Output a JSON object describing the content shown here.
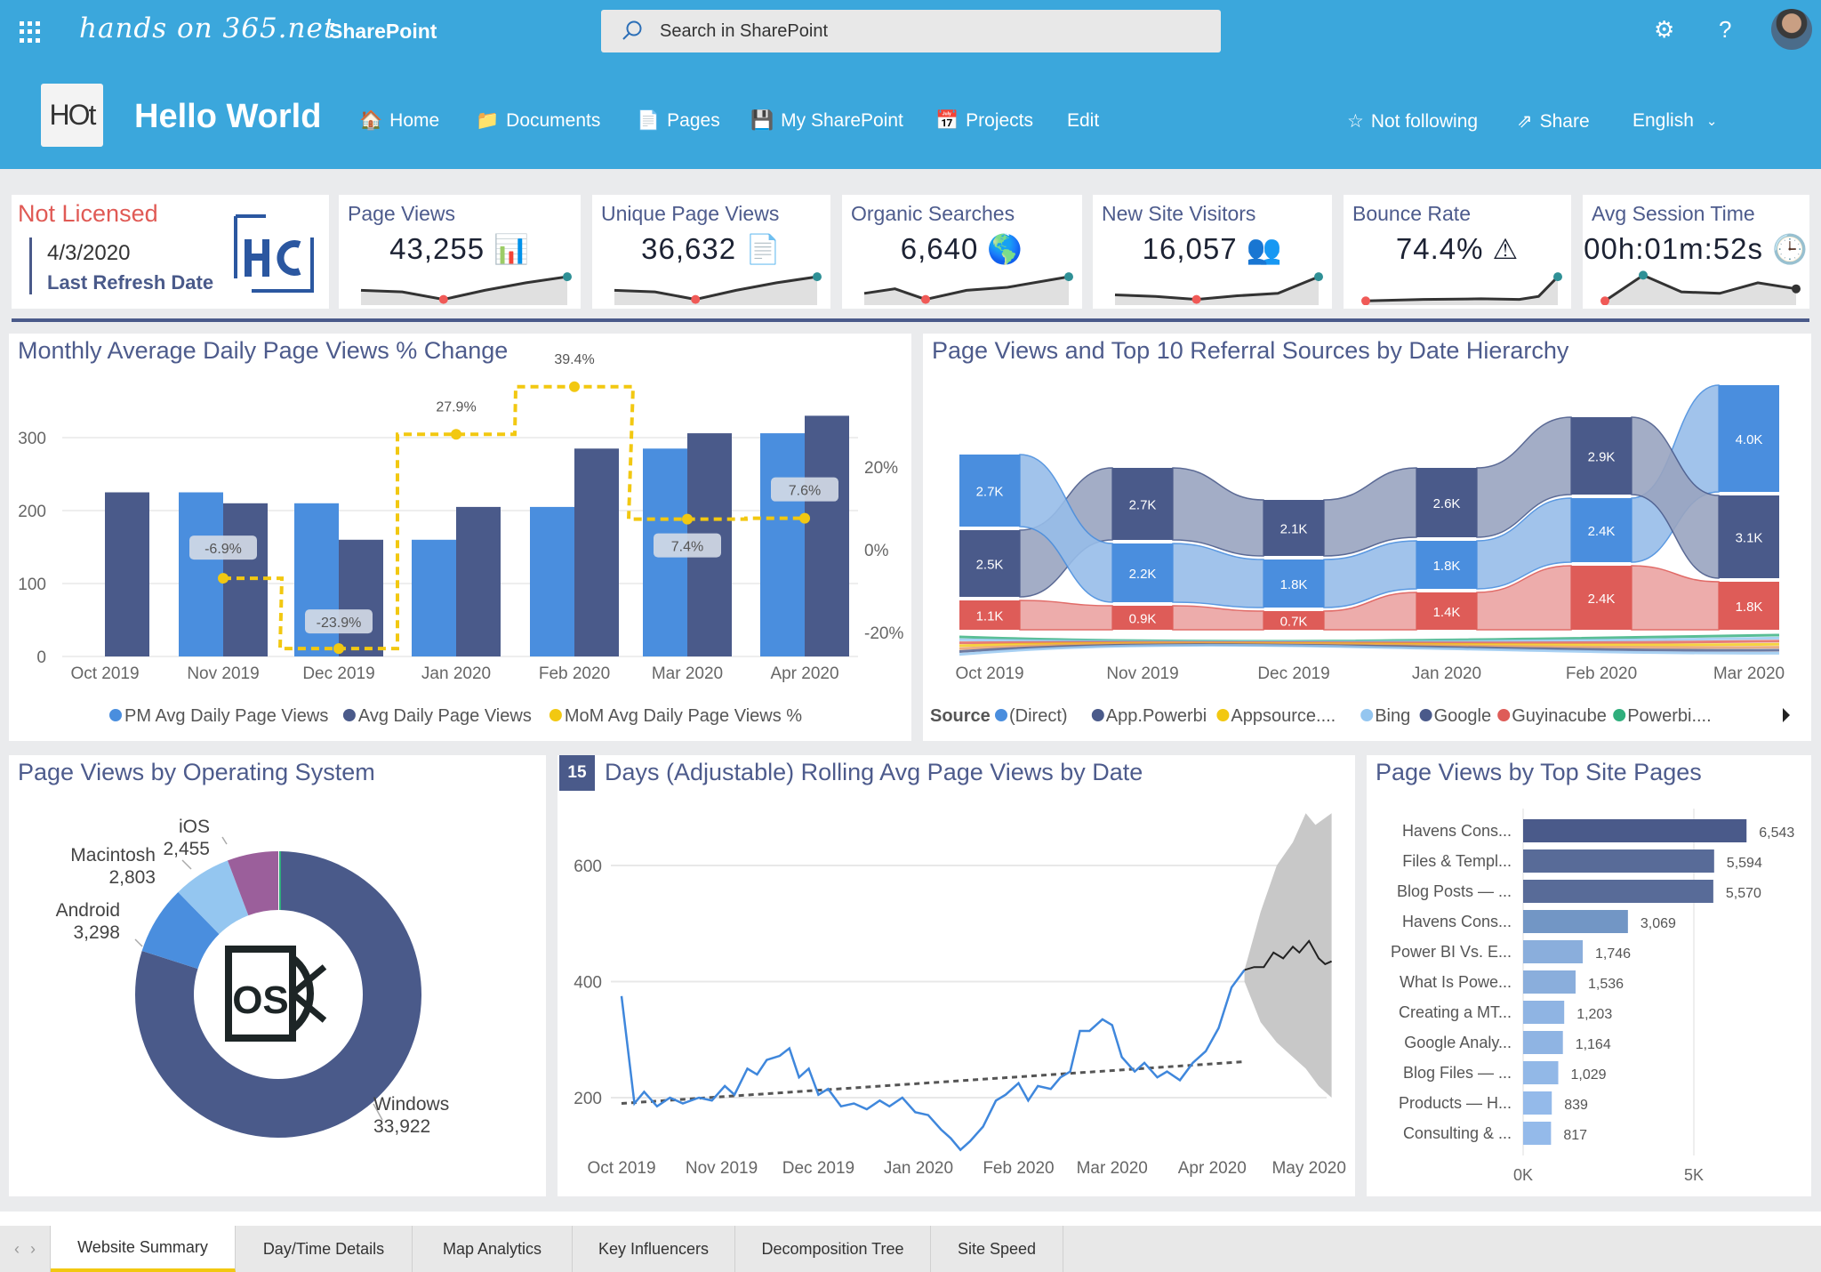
{
  "header": {
    "brand_logo": "hands on 365.net",
    "app_name": "SharePoint",
    "search_placeholder": "Search in SharePoint",
    "site_logo": "HOt",
    "site_title": "Hello World",
    "nav": [
      {
        "label": "Home",
        "icon": "house-icon"
      },
      {
        "label": "Documents",
        "icon": "folder-icon"
      },
      {
        "label": "Pages",
        "icon": "page-icon"
      },
      {
        "label": "My SharePoint",
        "icon": "floppy-icon"
      },
      {
        "label": "Projects",
        "icon": "calendar-icon"
      },
      {
        "label": "Edit"
      }
    ],
    "follow_label": "Not following",
    "share_label": "Share",
    "language": "English"
  },
  "license": {
    "status": "Not Licensed",
    "date": "4/3/2020",
    "date_label": "Last Refresh Date",
    "logo": "HC"
  },
  "kpis": [
    {
      "title": "Page Views",
      "value": "43,255",
      "icon": "bar-chart-icon"
    },
    {
      "title": "Unique Page Views",
      "value": "36,632",
      "icon": "document-icon"
    },
    {
      "title": "Organic Searches",
      "value": "6,640",
      "icon": "globe-icon"
    },
    {
      "title": "New Site Visitors",
      "value": "16,057",
      "icon": "users-icon"
    },
    {
      "title": "Bounce Rate",
      "value": "74.4%",
      "icon": "warning-icon"
    },
    {
      "title": "Avg Session Time",
      "value": "00h:01m:52s",
      "icon": "clock-icon"
    }
  ],
  "colors": {
    "header": "#3ba7dc",
    "pm": "#4a8ede",
    "avg": "#4a5a8a",
    "mom": "#f2c811",
    "guy": "#de5c58",
    "bing": "#94c6f0",
    "green": "#2fae7c",
    "title": "#4d5b8c"
  },
  "chart_data": [
    {
      "type": "bar",
      "title": "Monthly Average Daily Page Views % Change",
      "categories": [
        "Oct 2019",
        "Nov 2019",
        "Dec 2019",
        "Jan 2020",
        "Feb 2020",
        "Mar 2020",
        "Apr 2020"
      ],
      "ylim": [
        0,
        330
      ],
      "yticks": [
        0,
        100,
        200,
        300
      ],
      "y2ticks": [
        "20%",
        "0%",
        "-20%"
      ],
      "y2values": [
        20,
        0,
        -20
      ],
      "grid": true,
      "legend": "bottom",
      "series": [
        {
          "name": "PM Avg Daily Page Views",
          "values": [
            null,
            225,
            210,
            160,
            205,
            285,
            306
          ]
        },
        {
          "name": "Avg Daily Page Views",
          "values": [
            225,
            210,
            160,
            205,
            285,
            306,
            330
          ]
        },
        {
          "name": "MoM Avg Daily Page Views %",
          "type": "step-line",
          "axis": "right",
          "values": [
            null,
            -6.9,
            -23.9,
            27.9,
            39.4,
            7.4,
            7.6
          ],
          "labels": [
            "",
            "-6.9%",
            "-23.9%",
            "27.9%",
            "39.4%",
            "7.4%",
            "7.6%"
          ]
        }
      ]
    },
    {
      "type": "sankey",
      "title": "Page Views and Top 10 Referral Sources by Date Hierarchy",
      "categories": [
        "Oct 2019",
        "Nov 2019",
        "Dec 2019",
        "Jan 2020",
        "Feb 2020",
        "Mar 2020"
      ],
      "legend_title": "Source",
      "legend": [
        "(Direct)",
        "App.Powerbi",
        "Appsource....",
        "Bing",
        "Google",
        "Guyinacube",
        "Powerbi...."
      ],
      "legend_colors": [
        "#4a8ede",
        "#4a5a8a",
        "#f2c811",
        "#94c6f0",
        "#4a5a8a",
        "#de5c58",
        "#2fae7c"
      ],
      "nodes": [
        [
          {
            "source": "(Direct)",
            "value": 2.7,
            "label": "2.7K"
          },
          {
            "source": "App.Powerbi",
            "value": 2.5,
            "label": "2.5K"
          },
          {
            "source": "Guyinacube",
            "value": 1.1,
            "label": "1.1K"
          }
        ],
        [
          {
            "source": "App.Powerbi",
            "value": 2.7,
            "label": "2.7K"
          },
          {
            "source": "(Direct)",
            "value": 2.2,
            "label": "2.2K"
          },
          {
            "source": "Guyinacube",
            "value": 0.9,
            "label": "0.9K"
          }
        ],
        [
          {
            "source": "App.Powerbi",
            "value": 2.1,
            "label": "2.1K"
          },
          {
            "source": "(Direct)",
            "value": 1.8,
            "label": "1.8K"
          },
          {
            "source": "Guyinacube",
            "value": 0.7,
            "label": "0.7K"
          }
        ],
        [
          {
            "source": "App.Powerbi",
            "value": 2.6,
            "label": "2.6K"
          },
          {
            "source": "(Direct)",
            "value": 1.8,
            "label": "1.8K"
          },
          {
            "source": "Guyinacube",
            "value": 1.4,
            "label": "1.4K"
          }
        ],
        [
          {
            "source": "App.Powerbi",
            "value": 2.9,
            "label": "2.9K"
          },
          {
            "source": "(Direct)",
            "value": 2.4,
            "label": "2.4K"
          },
          {
            "source": "Guyinacube",
            "value": 2.4,
            "label": "2.4K"
          }
        ],
        [
          {
            "source": "(Direct)",
            "value": 4.0,
            "label": "4.0K"
          },
          {
            "source": "App.Powerbi",
            "value": 3.1,
            "label": "3.1K"
          },
          {
            "source": "Guyinacube",
            "value": 1.8,
            "label": "1.8K"
          }
        ]
      ]
    },
    {
      "type": "pie",
      "title": "Page Views by Operating System",
      "donut": true,
      "slices": [
        {
          "label": "Windows",
          "value": 33922,
          "display": "33,922",
          "color": "#4a5a8a"
        },
        {
          "label": "Android",
          "value": 3298,
          "display": "3,298",
          "color": "#4a8ede"
        },
        {
          "label": "Macintosh",
          "value": 2803,
          "display": "2,803",
          "color": "#94c6f0"
        },
        {
          "label": "iOS",
          "value": 2455,
          "display": "2,455",
          "color": "#9b5f9b"
        }
      ],
      "center_icon": "os-icon"
    },
    {
      "type": "line",
      "title_badge": "15",
      "title": "Days (Adjustable) Rolling Avg Page Views by Date",
      "xticks": [
        "Oct 2019",
        "Nov 2019",
        "Dec 2019",
        "Jan 2020",
        "Feb 2020",
        "Mar 2020",
        "Apr 2020",
        "May 2020"
      ],
      "yticks": [
        200,
        400,
        600
      ],
      "grid": true,
      "series": [
        {
          "name": "rolling",
          "points": [
            [
              "2019-10-01",
              375
            ],
            [
              "2019-10-05",
              190
            ],
            [
              "2019-10-08",
              210
            ],
            [
              "2019-10-12",
              185
            ],
            [
              "2019-10-16",
              200
            ],
            [
              "2019-10-20",
              190
            ],
            [
              "2019-10-25",
              200
            ],
            [
              "2019-10-29",
              195
            ],
            [
              "2019-11-02",
              220
            ],
            [
              "2019-11-05",
              205
            ],
            [
              "2019-11-09",
              250
            ],
            [
              "2019-11-12",
              240
            ],
            [
              "2019-11-15",
              265
            ],
            [
              "2019-11-19",
              272
            ],
            [
              "2019-11-22",
              285
            ],
            [
              "2019-11-25",
              235
            ],
            [
              "2019-11-28",
              250
            ],
            [
              "2019-12-01",
              205
            ],
            [
              "2019-12-04",
              215
            ],
            [
              "2019-12-08",
              185
            ],
            [
              "2019-12-12",
              190
            ],
            [
              "2019-12-16",
              180
            ],
            [
              "2019-12-20",
              195
            ],
            [
              "2019-12-23",
              185
            ],
            [
              "2019-12-27",
              200
            ],
            [
              "2019-12-31",
              175
            ],
            [
              "2020-01-04",
              170
            ],
            [
              "2020-01-08",
              145
            ],
            [
              "2020-01-11",
              130
            ],
            [
              "2020-01-14",
              110
            ],
            [
              "2020-01-17",
              125
            ],
            [
              "2020-01-21",
              150
            ],
            [
              "2020-01-25",
              195
            ],
            [
              "2020-01-28",
              205
            ],
            [
              "2020-02-01",
              225
            ],
            [
              "2020-02-04",
              195
            ],
            [
              "2020-02-07",
              220
            ],
            [
              "2020-02-11",
              215
            ],
            [
              "2020-02-14",
              235
            ],
            [
              "2020-02-17",
              245
            ],
            [
              "2020-02-20",
              315
            ],
            [
              "2020-02-23",
              315
            ],
            [
              "2020-02-27",
              335
            ],
            [
              "2020-03-01",
              325
            ],
            [
              "2020-03-04",
              270
            ],
            [
              "2020-03-08",
              245
            ],
            [
              "2020-03-11",
              260
            ],
            [
              "2020-03-15",
              235
            ],
            [
              "2020-03-18",
              245
            ],
            [
              "2020-03-22",
              230
            ],
            [
              "2020-03-26",
              260
            ],
            [
              "2020-03-30",
              280
            ],
            [
              "2020-04-03",
              320
            ],
            [
              "2020-04-07",
              390
            ],
            [
              "2020-04-11",
              420
            ]
          ]
        },
        {
          "name": "forecast",
          "points": [
            [
              "2020-04-11",
              420
            ],
            [
              "2020-04-14",
              425
            ],
            [
              "2020-04-17",
              425
            ],
            [
              "2020-04-20",
              450
            ],
            [
              "2020-04-23",
              440
            ],
            [
              "2020-04-26",
              460
            ],
            [
              "2020-04-28",
              450
            ],
            [
              "2020-05-01",
              470
            ],
            [
              "2020-05-04",
              440
            ],
            [
              "2020-05-06",
              430
            ],
            [
              "2020-05-08",
              435
            ]
          ]
        },
        {
          "name": "forecast_band",
          "upper": [
            [
              "2020-04-11",
              420
            ],
            [
              "2020-04-16",
              520
            ],
            [
              "2020-04-21",
              600
            ],
            [
              "2020-04-26",
              640
            ],
            [
              "2020-04-30",
              690
            ],
            [
              "2020-05-03",
              670
            ],
            [
              "2020-05-08",
              690
            ]
          ],
          "lower": [
            [
              "2020-04-11",
              400
            ],
            [
              "2020-04-16",
              330
            ],
            [
              "2020-04-21",
              295
            ],
            [
              "2020-04-26",
              270
            ],
            [
              "2020-04-30",
              250
            ],
            [
              "2020-05-04",
              220
            ],
            [
              "2020-05-08",
              200
            ]
          ]
        },
        {
          "name": "trend",
          "points": [
            [
              "2019-10-01",
              190
            ],
            [
              "2020-04-11",
              262
            ]
          ]
        }
      ]
    },
    {
      "type": "bar",
      "orientation": "horizontal",
      "title": "Page Views by Top Site Pages",
      "xticks": [
        "0K",
        "5K"
      ],
      "categories": [
        "Havens Cons...",
        "Files & Templ...",
        "Blog Posts — ...",
        "Havens Cons...",
        "Power BI Vs. E...",
        "What Is Powe...",
        "Creating a MT...",
        "Google Analy...",
        "Blog Files — ...",
        "Products — H...",
        "Consulting & ..."
      ],
      "values": [
        6543,
        5594,
        5570,
        3069,
        1746,
        1536,
        1203,
        1164,
        1029,
        839,
        817
      ],
      "labels": [
        "6,543",
        "5,594",
        "5,570",
        "3,069",
        "1,746",
        "1,536",
        "1,203",
        "1,164",
        "1,029",
        "839",
        "817"
      ]
    }
  ],
  "tabs": [
    "Website Summary",
    "Day/Time Details",
    "Map Analytics",
    "Key Influencers",
    "Decomposition Tree",
    "Site Speed"
  ],
  "active_tab": "Website Summary"
}
